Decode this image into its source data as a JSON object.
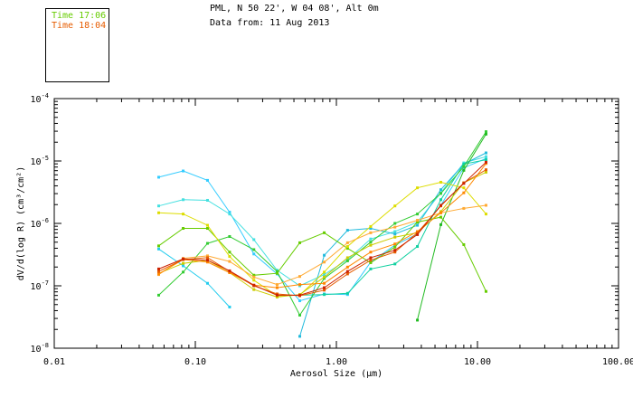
{
  "legend": [
    {
      "label": "Time 17:06",
      "color": "#66cc00"
    },
    {
      "label": "Time 18:04",
      "color": "#e65c00"
    }
  ],
  "header": {
    "location": "PML, N 50 22', W 04 08', Alt 0m",
    "date": "Data from: 11 Aug 2013"
  },
  "chart_data": {
    "type": "line",
    "title": "PML, N 50 22', W 04 08', Alt 0m",
    "xlabel": "Aerosol Size (µm)",
    "ylabel": "dV/d(log R) (cm³/cm²)",
    "x_scale": "log",
    "y_scale": "log",
    "xlim": [
      0.01,
      100
    ],
    "ylim_exponent": [
      -8,
      -4
    ],
    "x_ticks": [
      {
        "value": 0.01,
        "label": "0.01"
      },
      {
        "value": 0.1,
        "label": "0.10"
      },
      {
        "value": 1,
        "label": "1.00"
      },
      {
        "value": 10,
        "label": "10.00"
      },
      {
        "value": 100,
        "label": "100.00"
      }
    ],
    "y_ticks": [
      {
        "exp": -8,
        "base": "10",
        "sup": "-8"
      },
      {
        "exp": -7,
        "base": "10",
        "sup": "-7"
      },
      {
        "exp": -6,
        "base": "10",
        "sup": "-6"
      },
      {
        "exp": -5,
        "base": "10",
        "sup": "-5"
      },
      {
        "exp": -4,
        "base": "10",
        "sup": "-4"
      }
    ],
    "series": [
      {
        "name": "cyan-1",
        "color": "#33ccff",
        "points": [
          [
            0.055,
            -5.26
          ],
          [
            0.082,
            -5.16
          ],
          [
            0.122,
            -5.31
          ],
          [
            0.175,
            -5.82
          ],
          [
            0.26,
            -6.49
          ],
          [
            0.38,
            -6.81
          ],
          [
            0.55,
            -7.24
          ],
          [
            0.82,
            -7.13
          ],
          [
            1.2,
            -7.14
          ],
          [
            1.75,
            -6.62
          ],
          [
            2.6,
            -6.35
          ],
          [
            3.75,
            -6.17
          ],
          [
            5.5,
            -5.71
          ],
          [
            8.0,
            -5.11
          ],
          [
            11.5,
            -4.96
          ]
        ]
      },
      {
        "name": "cyan-2",
        "color": "#44e0e0",
        "points": [
          [
            0.055,
            -5.72
          ],
          [
            0.082,
            -5.62
          ],
          [
            0.122,
            -5.63
          ],
          [
            0.175,
            -5.85
          ],
          [
            0.26,
            -6.26
          ],
          [
            0.38,
            -6.75
          ],
          [
            0.55,
            -7.0
          ],
          [
            0.82,
            -6.82
          ],
          [
            1.2,
            -6.58
          ],
          [
            1.75,
            -6.25
          ],
          [
            2.6,
            -6.13
          ],
          [
            3.75,
            -5.98
          ],
          [
            5.5,
            -5.51
          ],
          [
            8.0,
            -5.03
          ],
          [
            11.5,
            -4.93
          ]
        ]
      },
      {
        "name": "cyan-3",
        "color": "#22ccee",
        "points": [
          [
            0.055,
            -6.41
          ],
          [
            0.082,
            -6.68
          ],
          [
            0.122,
            -6.96
          ],
          [
            0.175,
            -7.34
          ]
        ]
      },
      {
        "name": "cyan-4",
        "color": "#22bbdd",
        "points": [
          [
            0.55,
            -7.81
          ],
          [
            0.82,
            -6.51
          ],
          [
            1.2,
            -6.11
          ],
          [
            1.75,
            -6.08
          ],
          [
            2.6,
            -6.17
          ],
          [
            3.75,
            -6.03
          ],
          [
            5.5,
            -5.46
          ],
          [
            8.0,
            -5.05
          ],
          [
            11.5,
            -4.87
          ]
        ]
      },
      {
        "name": "teal",
        "color": "#11d0a0",
        "points": [
          [
            0.55,
            -7.15
          ],
          [
            0.82,
            -7.14
          ],
          [
            1.2,
            -7.12
          ],
          [
            1.75,
            -6.73
          ],
          [
            2.6,
            -6.65
          ],
          [
            3.75,
            -6.37
          ],
          [
            5.5,
            -5.62
          ],
          [
            8.0,
            -5.05
          ],
          [
            11.5,
            -4.98
          ]
        ]
      },
      {
        "name": "green-1",
        "color": "#33cc33",
        "points": [
          [
            0.055,
            -7.15
          ],
          [
            0.082,
            -6.78
          ],
          [
            0.122,
            -6.32
          ],
          [
            0.175,
            -6.21
          ],
          [
            0.26,
            -6.42
          ],
          [
            0.38,
            -6.77
          ],
          [
            0.55,
            -7.47
          ],
          [
            0.82,
            -6.88
          ],
          [
            1.2,
            -6.6
          ],
          [
            1.75,
            -6.3
          ],
          [
            2.6,
            -6.0
          ],
          [
            3.75,
            -5.85
          ],
          [
            5.5,
            -5.52
          ],
          [
            8.0,
            -5.09
          ],
          [
            11.5,
            -4.53
          ]
        ]
      },
      {
        "name": "green-2",
        "color": "#22bb22",
        "points": [
          [
            3.75,
            -7.55
          ],
          [
            5.5,
            -6.02
          ],
          [
            8.0,
            -5.15
          ],
          [
            11.5,
            -4.57
          ]
        ]
      },
      {
        "name": "green-3",
        "color": "#66cc00",
        "points": [
          [
            0.055,
            -6.36
          ],
          [
            0.082,
            -6.08
          ],
          [
            0.122,
            -6.08
          ],
          [
            0.175,
            -6.46
          ],
          [
            0.26,
            -6.83
          ],
          [
            0.38,
            -6.8
          ],
          [
            0.55,
            -6.31
          ],
          [
            0.82,
            -6.15
          ],
          [
            1.2,
            -6.4
          ],
          [
            1.75,
            -6.63
          ],
          [
            2.6,
            -6.38
          ],
          [
            3.75,
            -5.98
          ],
          [
            5.5,
            -5.9
          ],
          [
            8.0,
            -6.34
          ],
          [
            11.5,
            -7.09
          ]
        ]
      },
      {
        "name": "yellow-1",
        "color": "#dddd00",
        "points": [
          [
            0.055,
            -5.83
          ],
          [
            0.082,
            -5.85
          ],
          [
            0.122,
            -6.03
          ],
          [
            0.175,
            -6.53
          ],
          [
            0.26,
            -6.91
          ],
          [
            0.38,
            -7.16
          ],
          [
            0.55,
            -7.15
          ],
          [
            0.82,
            -6.78
          ],
          [
            1.2,
            -6.37
          ],
          [
            1.75,
            -6.05
          ],
          [
            2.6,
            -5.72
          ],
          [
            3.75,
            -5.43
          ],
          [
            5.5,
            -5.34
          ],
          [
            8.0,
            -5.43
          ],
          [
            11.5,
            -5.85
          ]
        ]
      },
      {
        "name": "yellow-2",
        "color": "#cccc00",
        "points": [
          [
            0.055,
            -6.8
          ],
          [
            0.082,
            -6.64
          ],
          [
            0.122,
            -6.59
          ],
          [
            0.175,
            -6.79
          ],
          [
            0.26,
            -7.06
          ],
          [
            0.38,
            -7.18
          ],
          [
            0.55,
            -7.14
          ],
          [
            0.82,
            -6.86
          ],
          [
            1.2,
            -6.55
          ],
          [
            1.75,
            -6.35
          ],
          [
            2.6,
            -6.22
          ],
          [
            3.75,
            -6.15
          ],
          [
            5.5,
            -5.81
          ],
          [
            8.0,
            -5.35
          ],
          [
            11.5,
            -5.18
          ]
        ]
      },
      {
        "name": "orange-1",
        "color": "#ffaa33",
        "points": [
          [
            0.055,
            -6.82
          ],
          [
            0.082,
            -6.56
          ],
          [
            0.122,
            -6.52
          ],
          [
            0.175,
            -6.61
          ],
          [
            0.26,
            -6.86
          ],
          [
            0.38,
            -6.98
          ],
          [
            0.55,
            -6.85
          ],
          [
            0.82,
            -6.62
          ],
          [
            1.2,
            -6.31
          ],
          [
            1.75,
            -6.15
          ],
          [
            2.6,
            -6.06
          ],
          [
            3.75,
            -5.95
          ],
          [
            5.5,
            -5.83
          ],
          [
            8.0,
            -5.76
          ],
          [
            11.5,
            -5.71
          ]
        ]
      },
      {
        "name": "orange-2",
        "color": "#ff8800",
        "points": [
          [
            0.055,
            -6.81
          ],
          [
            0.082,
            -6.58
          ],
          [
            0.122,
            -6.62
          ],
          [
            0.175,
            -6.79
          ],
          [
            0.26,
            -6.99
          ],
          [
            0.38,
            -7.03
          ],
          [
            0.55,
            -6.98
          ],
          [
            0.82,
            -6.96
          ],
          [
            1.2,
            -6.7
          ],
          [
            1.75,
            -6.46
          ],
          [
            2.6,
            -6.33
          ],
          [
            3.75,
            -6.13
          ],
          [
            5.5,
            -5.83
          ],
          [
            8.0,
            -5.51
          ],
          [
            11.5,
            -5.04
          ]
        ]
      },
      {
        "name": "red-orange",
        "color": "#e65c00",
        "points": [
          [
            0.055,
            -6.77
          ],
          [
            0.082,
            -6.58
          ],
          [
            0.122,
            -6.55
          ],
          [
            0.175,
            -6.77
          ],
          [
            0.26,
            -7.0
          ],
          [
            0.38,
            -7.13
          ],
          [
            0.55,
            -7.16
          ],
          [
            0.82,
            -7.07
          ],
          [
            1.2,
            -6.81
          ],
          [
            1.75,
            -6.59
          ],
          [
            2.6,
            -6.46
          ],
          [
            3.75,
            -6.15
          ],
          [
            5.5,
            -5.72
          ],
          [
            8.0,
            -5.35
          ],
          [
            11.5,
            -5.14
          ]
        ]
      },
      {
        "name": "red",
        "color": "#cc2200",
        "points": [
          [
            0.055,
            -6.73
          ],
          [
            0.082,
            -6.57
          ],
          [
            0.122,
            -6.59
          ],
          [
            0.175,
            -6.76
          ],
          [
            0.26,
            -6.99
          ],
          [
            0.38,
            -7.15
          ],
          [
            0.55,
            -7.15
          ],
          [
            0.82,
            -7.03
          ],
          [
            1.2,
            -6.77
          ],
          [
            1.75,
            -6.55
          ],
          [
            2.6,
            -6.43
          ],
          [
            3.75,
            -6.18
          ],
          [
            5.5,
            -5.71
          ],
          [
            8.0,
            -5.36
          ],
          [
            11.5,
            -5.02
          ]
        ]
      }
    ]
  }
}
